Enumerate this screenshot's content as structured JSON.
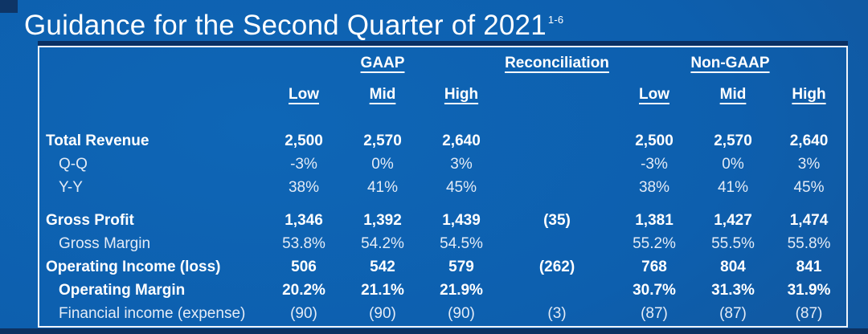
{
  "title": {
    "text": "Guidance for the Second Quarter of 2021",
    "superscript": "1-6"
  },
  "table": {
    "group_headers": {
      "gaap": "GAAP",
      "reconciliation": "Reconciliation",
      "non_gaap": "Non-GAAP"
    },
    "subheaders": [
      "Low",
      "Mid",
      "High"
    ],
    "rows": [
      {
        "label": "Total Revenue",
        "bold": true,
        "indent": false,
        "gaap": [
          "2,500",
          "2,570",
          "2,640"
        ],
        "recon": "",
        "nongaap": [
          "2,500",
          "2,570",
          "2,640"
        ]
      },
      {
        "label": "Q-Q",
        "bold": false,
        "indent": true,
        "gaap": [
          "-3%",
          "0%",
          "3%"
        ],
        "recon": "",
        "nongaap": [
          "-3%",
          "0%",
          "3%"
        ]
      },
      {
        "label": "Y-Y",
        "bold": false,
        "indent": true,
        "gaap": [
          "38%",
          "41%",
          "45%"
        ],
        "recon": "",
        "nongaap": [
          "38%",
          "41%",
          "45%"
        ]
      },
      {
        "label": "Gross Profit",
        "bold": true,
        "indent": false,
        "gaap": [
          "1,346",
          "1,392",
          "1,439"
        ],
        "recon": "(35)",
        "nongaap": [
          "1,381",
          "1,427",
          "1,474"
        ]
      },
      {
        "label": "Gross Margin",
        "bold": false,
        "indent": true,
        "gaap": [
          "53.8%",
          "54.2%",
          "54.5%"
        ],
        "recon": "",
        "nongaap": [
          "55.2%",
          "55.5%",
          "55.8%"
        ]
      },
      {
        "label": "Operating Income (loss)",
        "bold": true,
        "indent": false,
        "gaap": [
          "506",
          "542",
          "579"
        ],
        "recon": "(262)",
        "nongaap": [
          "768",
          "804",
          "841"
        ]
      },
      {
        "label": "Operating Margin",
        "bold": true,
        "indent": true,
        "gaap": [
          "20.2%",
          "21.1%",
          "21.9%"
        ],
        "recon": "",
        "nongaap": [
          "30.7%",
          "31.3%",
          "31.9%"
        ]
      },
      {
        "label": "Financial income (expense)",
        "bold": false,
        "indent": true,
        "gaap": [
          "(90)",
          "(90)",
          "(90)"
        ],
        "recon": "(3)",
        "nongaap": [
          "(87)",
          "(87)",
          "(87)"
        ]
      }
    ]
  },
  "colors": {
    "background_center": "#0e66b6",
    "background_edge": "#174d8a",
    "edge_dark": "#0d3161",
    "table_border": "#eef3fa",
    "text_primary": "#ffffff",
    "text_secondary": "#e3ebf6"
  }
}
